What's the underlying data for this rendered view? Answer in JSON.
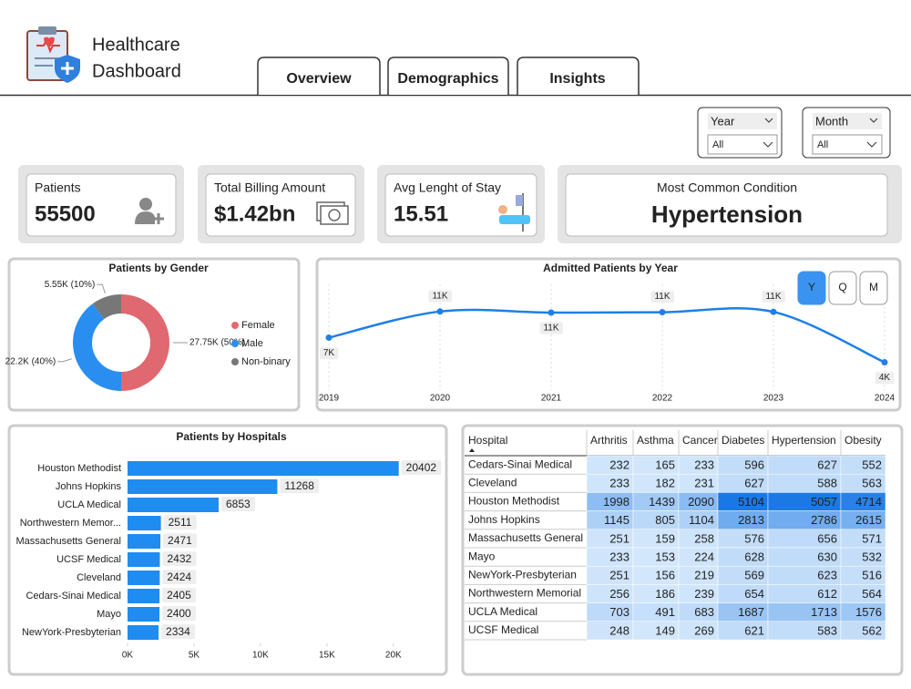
{
  "header": {
    "title": [
      "Healthcare",
      "Dashboard"
    ],
    "tabs": [
      "Overview",
      "Demographics",
      "Insights"
    ]
  },
  "filters": [
    {
      "label": "Year",
      "value": "All"
    },
    {
      "label": "Month",
      "value": "All"
    }
  ],
  "kpis": [
    {
      "label": "Patients",
      "value": 55500
    },
    {
      "label": "Total Billing Amount",
      "value": "$1.42bn"
    },
    {
      "label": "Avg Lenght of Stay",
      "value": 15.51
    },
    {
      "label": "Most Common Condition",
      "value": "Hypertension"
    }
  ],
  "chart_data": [
    {
      "type": "pie",
      "title": "Patients by Gender",
      "categories": [
        "Female",
        "Male",
        "Non-binary"
      ],
      "values": [
        27750,
        22200,
        5550
      ],
      "value_labels": [
        "27.75K (50%)",
        "22.2K (40%)",
        "5.55K (10%)"
      ],
      "colors": [
        "#e06870",
        "#2a8ef0",
        "#777777"
      ],
      "legend": "right"
    },
    {
      "type": "line",
      "title": "Admitted Patients by Year",
      "x": [
        2019,
        2020,
        2021,
        2022,
        2023,
        2024
      ],
      "values": [
        7400,
        11100,
        10950,
        11000,
        11050,
        3900
      ],
      "value_labels": [
        "7K",
        "11K",
        "11K",
        "11K",
        "11K",
        "4K"
      ],
      "color": "#1e7fe8",
      "xlim": [
        2019,
        2024
      ],
      "xticks": [
        2019,
        2020,
        2021,
        2022,
        2023,
        2024
      ],
      "ylim": [
        1000,
        16500
      ],
      "period_buttons": [
        "Y",
        "Q",
        "M"
      ]
    },
    {
      "type": "hbar",
      "title": "Patients by Hospitals",
      "categories": [
        "Houston Methodist",
        "Johns Hopkins",
        "UCLA Medical",
        "Northwestern Memor...",
        "Massachusetts General",
        "UCSF Medical",
        "Cleveland",
        "Cedars-Sinai Medical",
        "Mayo",
        "NewYork-Presbyterian"
      ],
      "values": [
        20402,
        11268,
        6853,
        2511,
        2471,
        2432,
        2424,
        2405,
        2400,
        2334
      ],
      "color": "#1e8cf0",
      "xlim": [
        0,
        22000
      ],
      "xticks": [
        {
          "value": 0,
          "label": "0K"
        },
        {
          "value": 5000,
          "label": "5K"
        },
        {
          "value": 10000,
          "label": "10K"
        },
        {
          "value": 15000,
          "label": "15K"
        },
        {
          "value": 20000,
          "label": "20K"
        }
      ]
    }
  ],
  "table": {
    "columns": [
      "Hospital",
      "Arthritis",
      "Asthma",
      "Cancer",
      "Diabetes",
      "Hypertension",
      "Obesity"
    ],
    "rows": [
      [
        "Cedars-Sinai Medical",
        232,
        165,
        233,
        596,
        627,
        552
      ],
      [
        "Cleveland",
        233,
        182,
        231,
        627,
        588,
        563
      ],
      [
        "Houston Methodist",
        1998,
        1439,
        2090,
        5104,
        5057,
        4714
      ],
      [
        "Johns Hopkins",
        1145,
        805,
        1104,
        2813,
        2786,
        2615
      ],
      [
        "Massachusetts General",
        251,
        159,
        258,
        576,
        656,
        571
      ],
      [
        "Mayo",
        233,
        153,
        224,
        628,
        630,
        532
      ],
      [
        "NewYork-Presbyterian",
        251,
        156,
        219,
        569,
        623,
        516
      ],
      [
        "Northwestern Memorial",
        256,
        186,
        239,
        654,
        612,
        564
      ],
      [
        "UCLA Medical",
        703,
        491,
        683,
        1687,
        1713,
        1576
      ],
      [
        "UCSF Medical",
        248,
        149,
        269,
        621,
        583,
        562
      ]
    ]
  }
}
